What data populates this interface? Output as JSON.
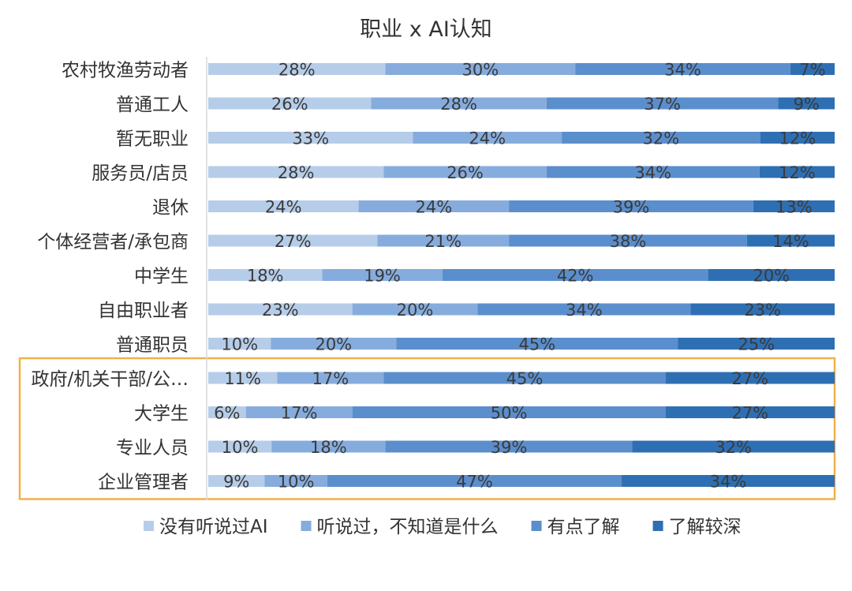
{
  "chart_data": {
    "type": "bar",
    "orientation": "horizontal",
    "stacked": true,
    "percent_stacked": true,
    "title": "职业 x AI认知",
    "categories": [
      "农村牧渔劳动者",
      "普通工人",
      "暂无职业",
      "服务员/店员",
      "退休",
      "个体经营者/承包商",
      "中学生",
      "自由职业者",
      "普通职员",
      "政府/机关干部/公…",
      "大学生",
      "专业人员",
      "企业管理者"
    ],
    "series": [
      {
        "name": "没有听说过AI",
        "color": "#b6cde9",
        "values": [
          28,
          26,
          33,
          28,
          24,
          27,
          18,
          23,
          10,
          11,
          6,
          10,
          9
        ]
      },
      {
        "name": "听说过，不知道是什么",
        "color": "#86acdd",
        "values": [
          30,
          28,
          24,
          26,
          24,
          21,
          19,
          20,
          20,
          17,
          17,
          18,
          10
        ]
      },
      {
        "name": "有点了解",
        "color": "#5b8ecc",
        "values": [
          34,
          37,
          32,
          34,
          39,
          38,
          42,
          34,
          45,
          45,
          50,
          39,
          47
        ]
      },
      {
        "name": "了解较深",
        "color": "#2e6fb3",
        "values": [
          7,
          9,
          12,
          12,
          13,
          14,
          20,
          23,
          25,
          27,
          27,
          32,
          34
        ]
      }
    ],
    "value_format": "{v}%",
    "legend_position": "bottom",
    "highlight": {
      "categories": [
        "政府/机关干部/公…",
        "大学生",
        "专业人员",
        "企业管理者"
      ],
      "color": "#f0b14a"
    },
    "grid": false
  }
}
